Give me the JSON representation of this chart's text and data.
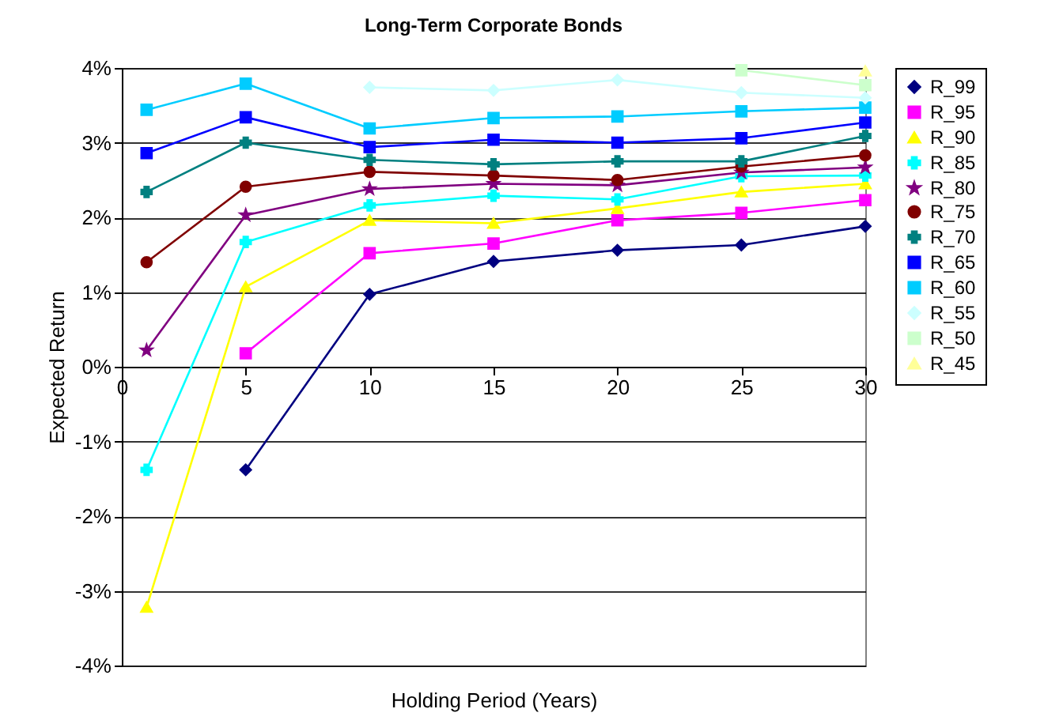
{
  "chart_data": {
    "type": "line",
    "title": "Long-Term Corporate Bonds",
    "xlabel": "Holding Period (Years)",
    "ylabel": "Expected Return",
    "x": [
      1,
      5,
      10,
      15,
      20,
      25,
      30
    ],
    "series": [
      {
        "name": "R_99",
        "color": "#000080",
        "marker": "diamond",
        "values": [
          null,
          -1.38,
          0.97,
          1.41,
          1.56,
          1.63,
          1.88
        ]
      },
      {
        "name": "R_95",
        "color": "#ff00ff",
        "marker": "square",
        "values": [
          null,
          0.18,
          1.52,
          1.65,
          1.96,
          2.06,
          2.23
        ]
      },
      {
        "name": "R_90",
        "color": "#ffff00",
        "marker": "triangle",
        "values": [
          -3.22,
          1.07,
          1.96,
          1.92,
          2.12,
          2.34,
          2.45
        ]
      },
      {
        "name": "R_85",
        "color": "#00ffff",
        "marker": "cross",
        "values": [
          -1.38,
          1.67,
          2.16,
          2.29,
          2.24,
          2.55,
          2.56
        ]
      },
      {
        "name": "R_80",
        "color": "#800080",
        "marker": "star",
        "values": [
          0.22,
          2.03,
          2.38,
          2.45,
          2.43,
          2.6,
          2.67
        ]
      },
      {
        "name": "R_75",
        "color": "#800000",
        "marker": "circle",
        "values": [
          1.4,
          2.41,
          2.61,
          2.56,
          2.5,
          2.68,
          2.83
        ]
      },
      {
        "name": "R_70",
        "color": "#008080",
        "marker": "cross",
        "values": [
          2.34,
          3.0,
          2.77,
          2.71,
          2.75,
          2.75,
          3.09
        ]
      },
      {
        "name": "R_65",
        "color": "#0000ff",
        "marker": "square",
        "values": [
          2.86,
          3.34,
          2.94,
          3.04,
          3.0,
          3.06,
          3.27
        ]
      },
      {
        "name": "R_60",
        "color": "#00ccff",
        "marker": "square",
        "values": [
          3.44,
          3.79,
          3.19,
          3.33,
          3.35,
          3.42,
          3.47
        ]
      },
      {
        "name": "R_55",
        "color": "#ccffff",
        "marker": "diamond",
        "values": [
          null,
          null,
          3.74,
          3.7,
          3.84,
          3.67,
          3.6
        ]
      },
      {
        "name": "R_50",
        "color": "#ccffcc",
        "marker": "square",
        "values": [
          null,
          null,
          null,
          null,
          null,
          3.97,
          3.77
        ]
      },
      {
        "name": "R_45",
        "color": "#ffff99",
        "marker": "triangle",
        "values": [
          null,
          null,
          null,
          null,
          null,
          null,
          3.96
        ]
      }
    ],
    "xlim": [
      0,
      30
    ],
    "xticks": [
      0,
      5,
      10,
      15,
      20,
      25,
      30
    ],
    "ylim": [
      -4,
      4
    ],
    "yticks": [
      {
        "value": -4,
        "label": "-4%"
      },
      {
        "value": -3,
        "label": "-3%"
      },
      {
        "value": -2,
        "label": "-2%"
      },
      {
        "value": -1,
        "label": "-1%"
      },
      {
        "value": 0,
        "label": "0%"
      },
      {
        "value": 1,
        "label": "1%"
      },
      {
        "value": 2,
        "label": "2%"
      },
      {
        "value": 3,
        "label": "3%"
      },
      {
        "value": 4,
        "label": "4%"
      }
    ],
    "grid": "y",
    "legend": "right"
  }
}
